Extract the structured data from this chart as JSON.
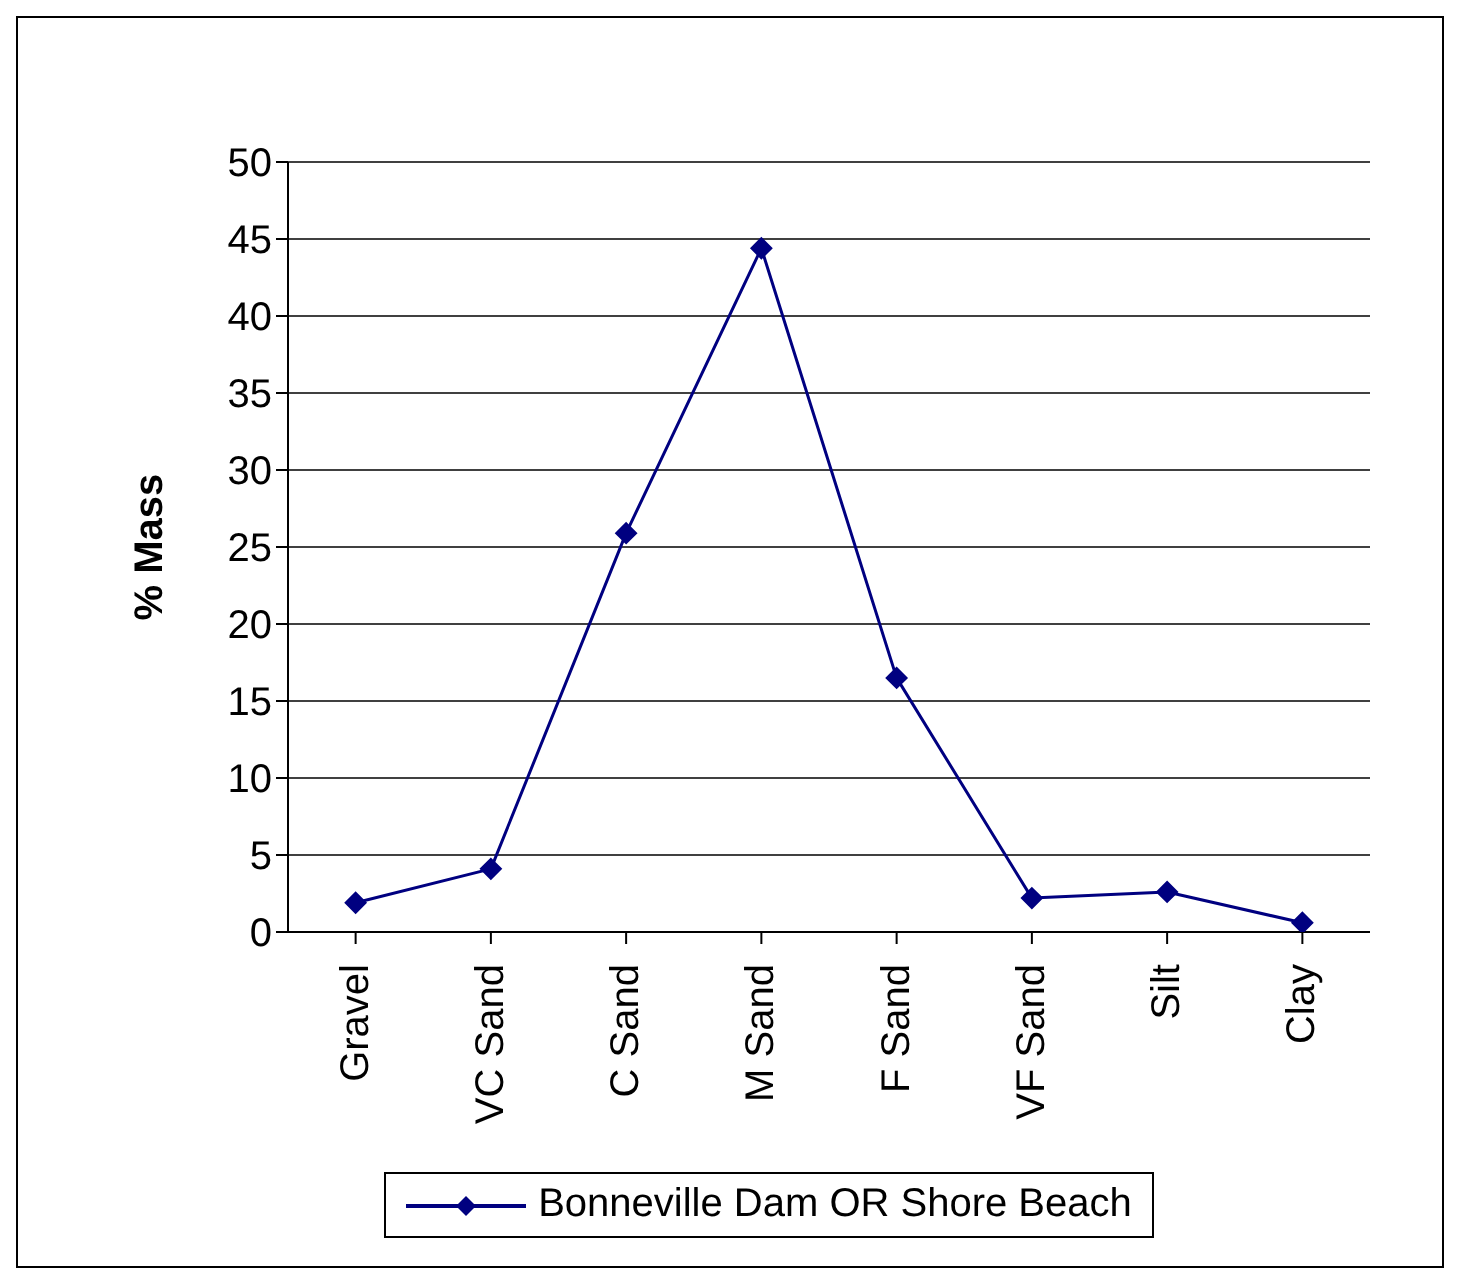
{
  "chart_data": {
    "type": "line",
    "ylabel": "% Mass",
    "categories": [
      "Gravel",
      "VC Sand",
      "C Sand",
      "M Sand",
      "F Sand",
      "VF Sand",
      "Silt",
      "Clay"
    ],
    "series": [
      {
        "name": "Bonneville Dam OR Shore Beach",
        "color": "#000080",
        "values": [
          1.9,
          4.1,
          25.9,
          44.4,
          16.5,
          2.2,
          2.6,
          0.6
        ]
      }
    ],
    "ylim": [
      0,
      50
    ],
    "yticks": [
      0,
      5,
      10,
      15,
      20,
      25,
      30,
      35,
      40,
      45,
      50
    ],
    "grid": "y",
    "legend": "bottom",
    "marker": "diamond",
    "line_style": "solid"
  }
}
